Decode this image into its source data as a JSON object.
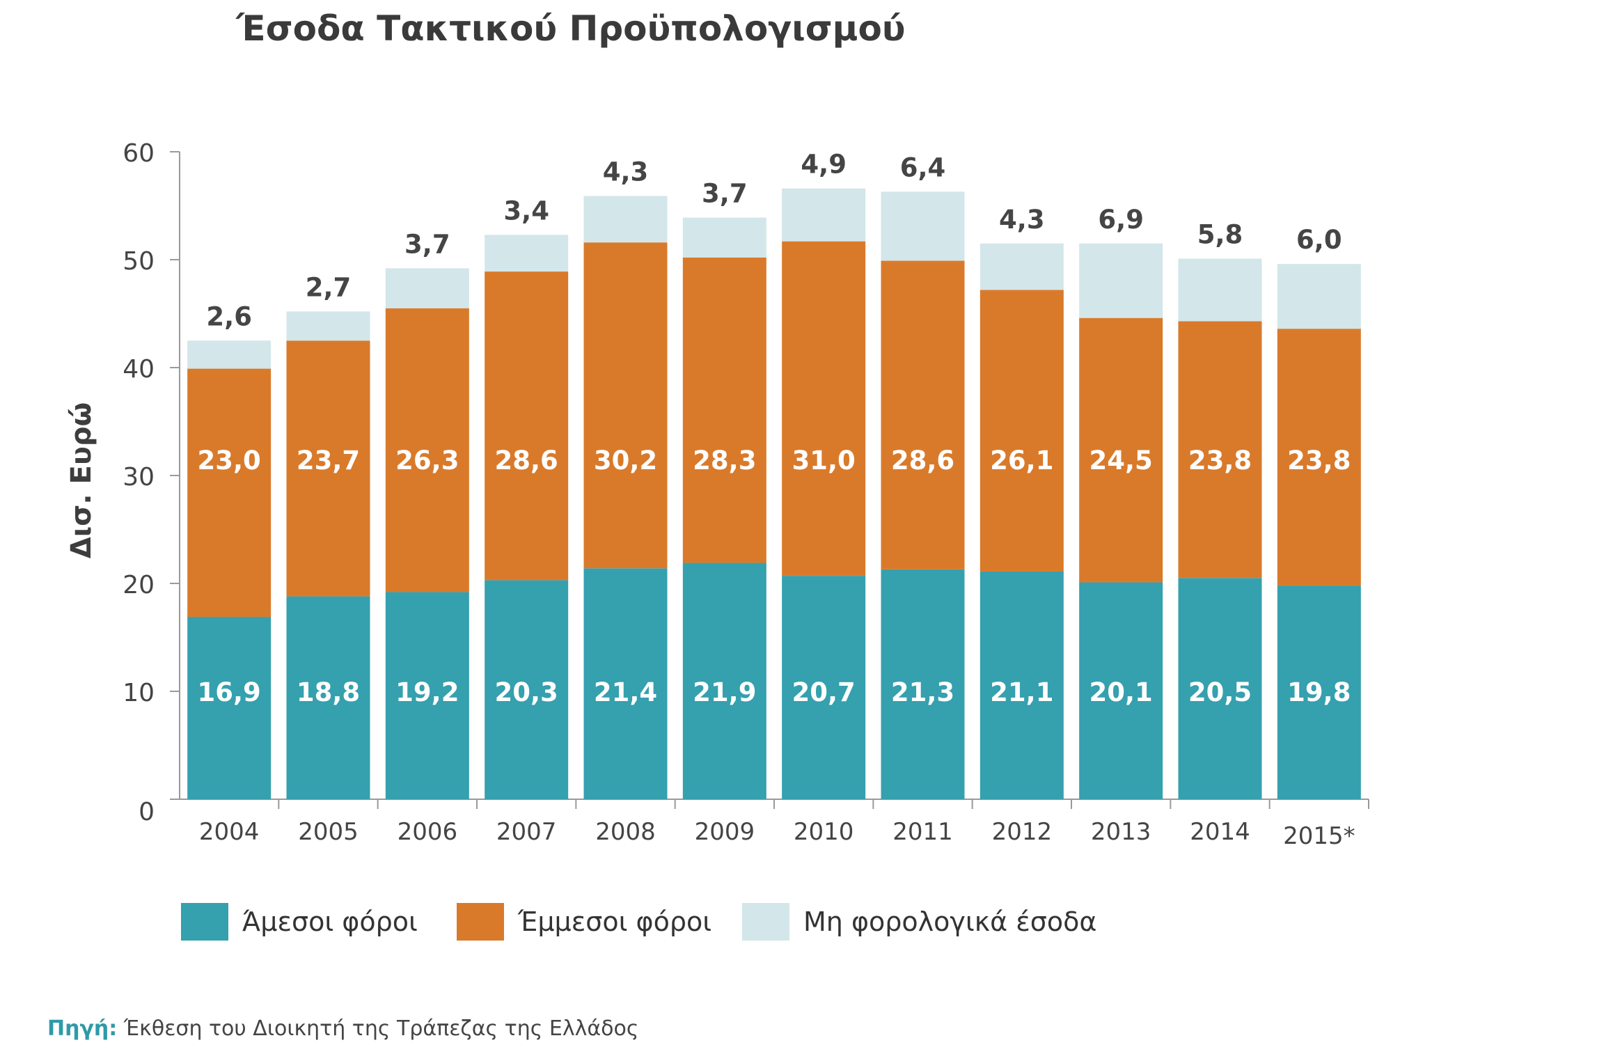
{
  "chart_data": {
    "type": "bar",
    "stacked": true,
    "title": "Έσοδα Τακτικού Προϋπολογισμού",
    "ylabel": "Δισ. Ευρώ",
    "xlabel": "",
    "ylim": [
      0,
      60
    ],
    "yticks": [
      "0",
      "10",
      "20",
      "30",
      "40",
      "50",
      "60"
    ],
    "categories": [
      "2004",
      "2005",
      "2006",
      "2007",
      "2008",
      "2009",
      "2010",
      "2011",
      "2012",
      "2013",
      "2014",
      "2015*"
    ],
    "series": [
      {
        "name": "Άμεσοι φόροι",
        "color": "#35a0ae",
        "values": [
          16.9,
          18.8,
          19.2,
          20.3,
          21.4,
          21.9,
          20.7,
          21.3,
          21.1,
          20.1,
          20.5,
          19.8
        ],
        "labels": [
          "16,9",
          "18,8",
          "19,2",
          "20,3",
          "21,4",
          "21,9",
          "20,7",
          "21,3",
          "21,1",
          "20,1",
          "20,5",
          "19,8"
        ]
      },
      {
        "name": "Έμμεσοι φόροι",
        "color": "#d97a2b",
        "values": [
          23.0,
          23.7,
          26.3,
          28.6,
          30.2,
          28.3,
          31.0,
          28.6,
          26.1,
          24.5,
          23.8,
          23.8
        ],
        "labels": [
          "23,0",
          "23,7",
          "26,3",
          "28,6",
          "30,2",
          "28,3",
          "31,0",
          "28,6",
          "26,1",
          "24,5",
          "23,8",
          "23,8"
        ]
      },
      {
        "name": "Μη φορολογικά έσοδα",
        "color": "#d3e6ea",
        "values": [
          2.6,
          2.7,
          3.7,
          3.4,
          4.3,
          3.7,
          4.9,
          6.4,
          4.3,
          6.9,
          5.8,
          6.0
        ],
        "labels": [
          "2,6",
          "2,7",
          "3,7",
          "3,4",
          "4,3",
          "3,7",
          "4,9",
          "6,4",
          "4,3",
          "6,9",
          "5,8",
          "6,0"
        ]
      }
    ],
    "legend_position": "bottom",
    "grid": false
  },
  "source": {
    "label": "Πηγή:",
    "text": " Έκθεση του Διοικητή της Τράπεζας της Ελλάδος"
  }
}
